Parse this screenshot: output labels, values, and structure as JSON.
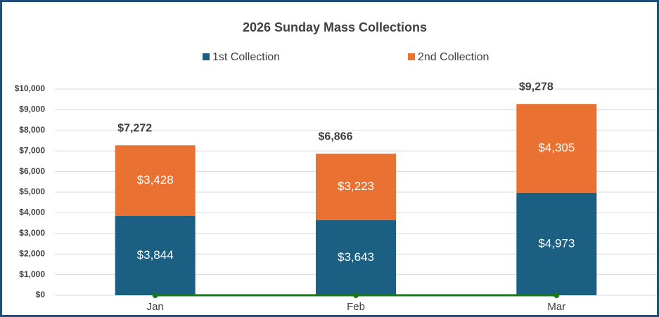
{
  "chart_data": {
    "type": "stacked_bar",
    "title": "2026 Sunday Mass Collections",
    "categories": [
      "Jan",
      "Feb",
      "Mar"
    ],
    "series": [
      {
        "name": "1st Collection",
        "color": "#1b5f82",
        "values": [
          3844,
          3643,
          4973
        ],
        "value_labels": [
          "$3,844",
          "$3,643",
          "$4,973"
        ]
      },
      {
        "name": "2nd Collection",
        "color": "#e97132",
        "values": [
          3428,
          3223,
          4305
        ],
        "value_labels": [
          "$3,428",
          "$3,223",
          "$4,305"
        ]
      }
    ],
    "totals": [
      7272,
      6866,
      9278
    ],
    "totals_labels": [
      "$7,272",
      "$6,866",
      "$9,278"
    ],
    "line": {
      "color": "#1a7a1a",
      "values": [
        0,
        0,
        0
      ]
    },
    "ylim": [
      0,
      10000
    ],
    "yticks": [
      {
        "value": 0,
        "label": "$0"
      },
      {
        "value": 1000,
        "label": "$1,000"
      },
      {
        "value": 2000,
        "label": "$2,000"
      },
      {
        "value": 3000,
        "label": "$3,000"
      },
      {
        "value": 4000,
        "label": "$4,000"
      },
      {
        "value": 5000,
        "label": "$5,000"
      },
      {
        "value": 6000,
        "label": "$6,000"
      },
      {
        "value": 7000,
        "label": "$7,000"
      },
      {
        "value": 8000,
        "label": "$8,000"
      },
      {
        "value": 9000,
        "label": "$9,000"
      },
      {
        "value": 10000,
        "label": "$10,000"
      }
    ],
    "grid": true,
    "legend": "top"
  }
}
